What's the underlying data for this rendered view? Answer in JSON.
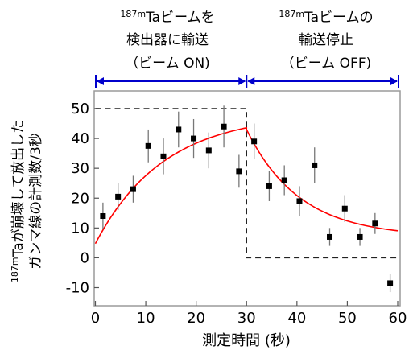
{
  "header": {
    "left_phase": {
      "isotope": "187m",
      "line1_rest": "Taビームを",
      "line2": "検出器に輸送",
      "line3": "（ビーム ON)"
    },
    "right_phase": {
      "isotope": "187m",
      "line1_rest": "Taビームの",
      "line2": "輸送停止",
      "line3": "（ビーム OFF)"
    },
    "arrow_color": "#0000cc"
  },
  "chart_data": {
    "type": "scatter",
    "xlabel": "測定時間 (秒)",
    "ylabel_sup": "187m",
    "ylabel_line1_rest": "Taが崩壊して放出した",
    "ylabel_line2": "ガンマ線の計測数/3秒",
    "xlim": [
      0,
      60
    ],
    "ylim": [
      -15,
      55
    ],
    "xticks": [
      0,
      10,
      20,
      30,
      40,
      50,
      60
    ],
    "yticks": [
      -10,
      0,
      10,
      20,
      30,
      40,
      50
    ],
    "grid": false,
    "points": [
      {
        "x": 1.5,
        "y": 14,
        "err": 4.5
      },
      {
        "x": 4.5,
        "y": 20.5,
        "err": 4.5
      },
      {
        "x": 7.5,
        "y": 23,
        "err": 4.5
      },
      {
        "x": 10.5,
        "y": 37.5,
        "err": 5.5
      },
      {
        "x": 13.5,
        "y": 34,
        "err": 6
      },
      {
        "x": 16.5,
        "y": 43,
        "err": 6
      },
      {
        "x": 19.5,
        "y": 40,
        "err": 6.5
      },
      {
        "x": 22.5,
        "y": 36,
        "err": 6
      },
      {
        "x": 25.5,
        "y": 44,
        "err": 7
      },
      {
        "x": 28.5,
        "y": 29,
        "err": 5.5
      },
      {
        "x": 31.5,
        "y": 39,
        "err": 6
      },
      {
        "x": 34.5,
        "y": 24,
        "err": 5
      },
      {
        "x": 37.5,
        "y": 26,
        "err": 5
      },
      {
        "x": 40.5,
        "y": 19,
        "err": 5
      },
      {
        "x": 43.5,
        "y": 31,
        "err": 6
      },
      {
        "x": 46.5,
        "y": 7,
        "err": 3
      },
      {
        "x": 49.5,
        "y": 16.5,
        "err": 4.5
      },
      {
        "x": 52.5,
        "y": 7,
        "err": 3
      },
      {
        "x": 55.5,
        "y": 11.5,
        "err": 3.5
      },
      {
        "x": 58.5,
        "y": -8.5,
        "err": 3
      }
    ],
    "fit": {
      "color": "#ff0000",
      "rise_asymptote": 48.3,
      "rise_offset": 1.4,
      "rise_tau": 13.5,
      "decay_peak": 43,
      "decay_tail": 7,
      "decay_tau": 10.5,
      "switch_x": 30
    },
    "beam_profile": {
      "style": "dashed",
      "on_level": 50,
      "off_level": 0,
      "switch_x": 30
    }
  }
}
